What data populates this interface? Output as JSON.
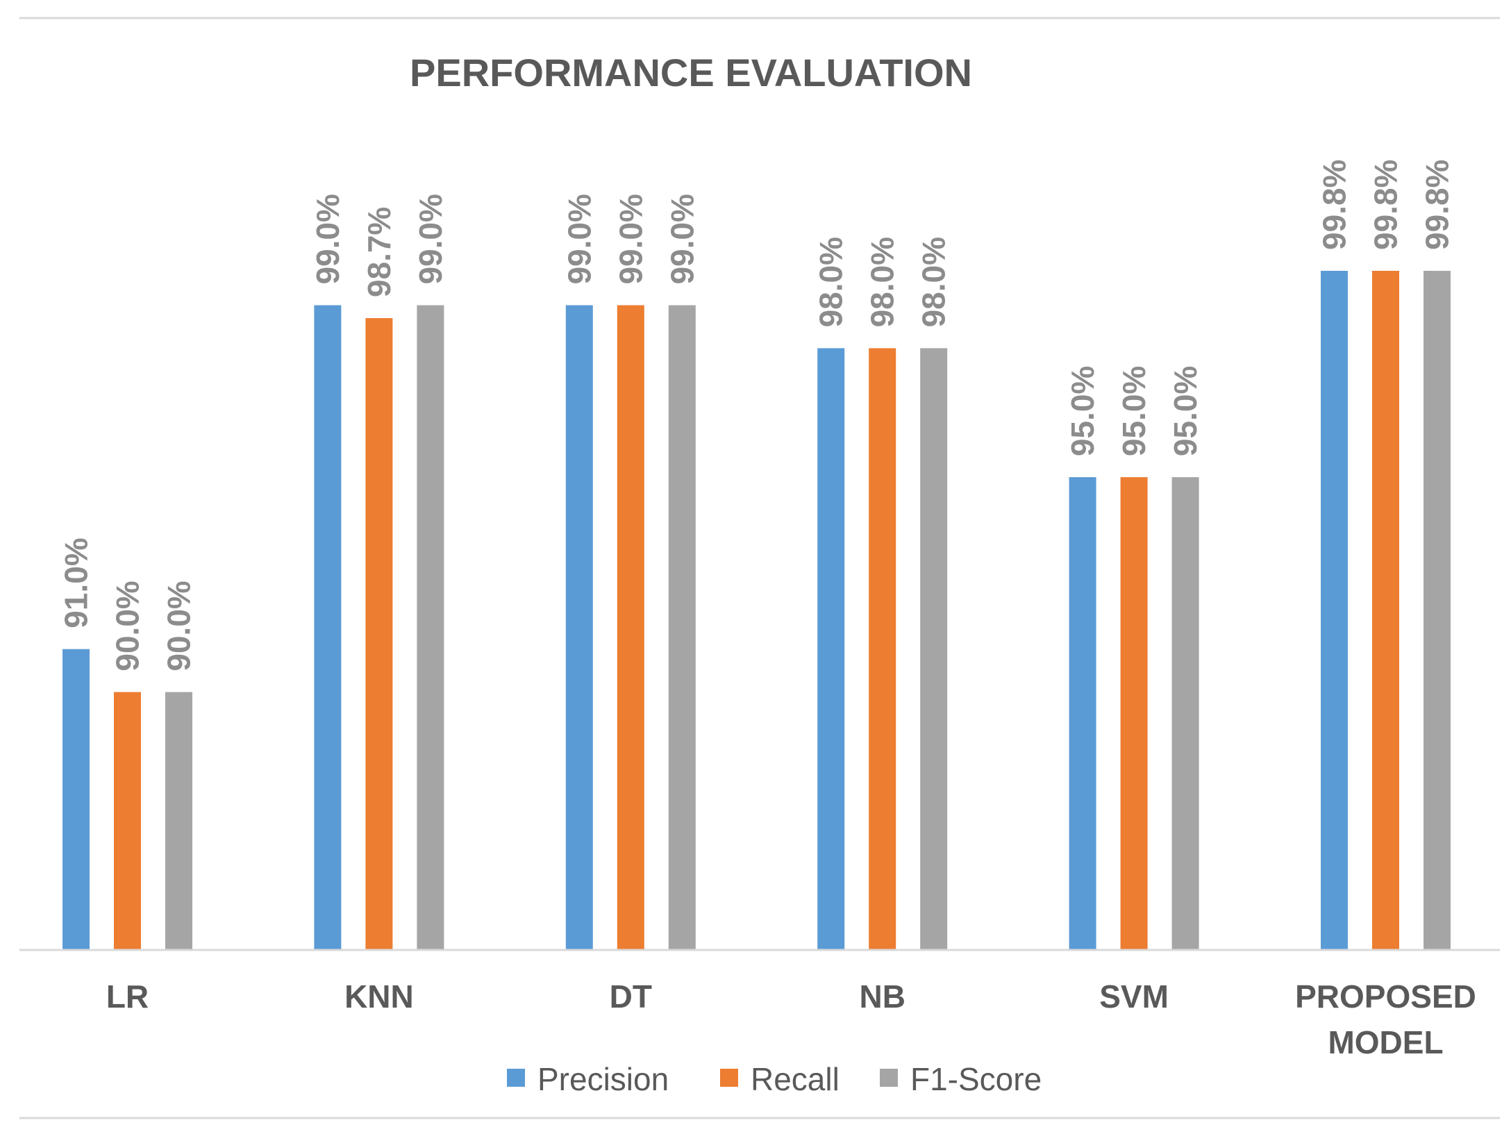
{
  "chart_data": {
    "type": "bar",
    "title": "PERFORMANCE EVALUATION",
    "categories": [
      [
        "LR"
      ],
      [
        "KNN"
      ],
      [
        "DT"
      ],
      [
        "NB"
      ],
      [
        "SVM"
      ],
      [
        "PROPOSED",
        "MODEL"
      ]
    ],
    "series": [
      {
        "name": "Precision",
        "color": "#5b9bd5",
        "values": [
          91.0,
          99.0,
          99.0,
          98.0,
          95.0,
          99.8
        ],
        "labels": [
          "91.0%",
          "99.0%",
          "99.0%",
          "98.0%",
          "95.0%",
          "99.8%"
        ]
      },
      {
        "name": "Recall",
        "color": "#ed7d31",
        "values": [
          90.0,
          98.7,
          99.0,
          98.0,
          95.0,
          99.8
        ],
        "labels": [
          "90.0%",
          "98.7%",
          "99.0%",
          "98.0%",
          "95.0%",
          "99.8%"
        ]
      },
      {
        "name": "F1-Score",
        "color": "#a5a5a5",
        "values": [
          90.0,
          99.0,
          99.0,
          98.0,
          95.0,
          99.8
        ],
        "labels": [
          "90.0%",
          "99.0%",
          "99.0%",
          "98.0%",
          "95.0%",
          "99.8%"
        ]
      }
    ],
    "xlabel": "",
    "ylabel": "",
    "ylim": [
      84.0,
      100.5
    ],
    "grid": false,
    "legend": "bottom"
  }
}
